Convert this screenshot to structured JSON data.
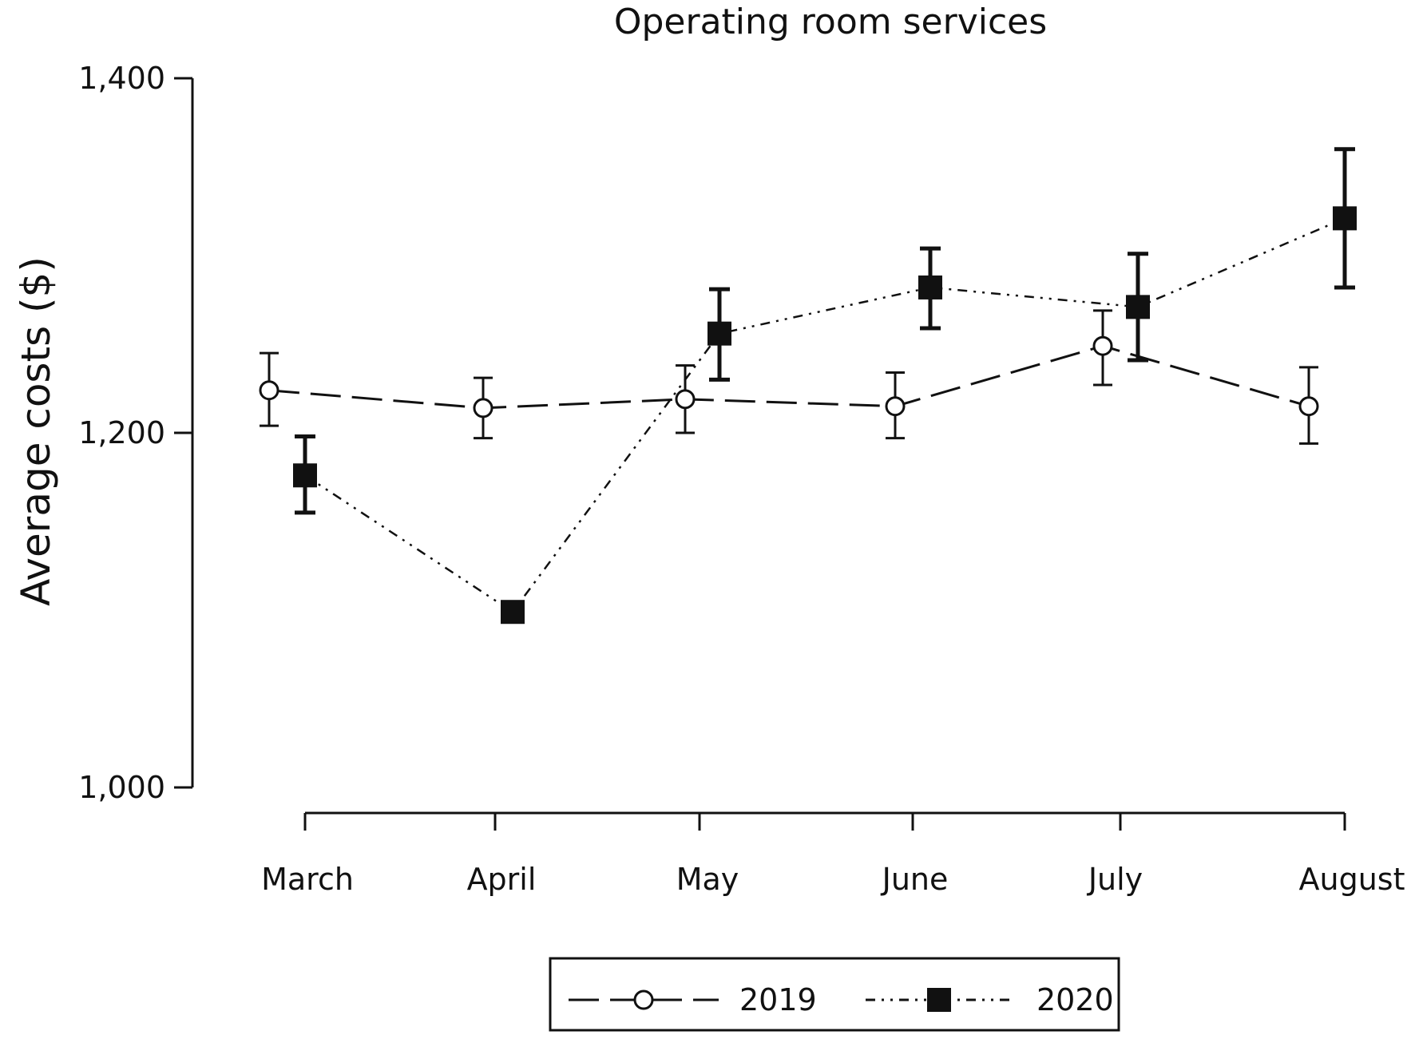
{
  "chart_data": {
    "type": "line",
    "title": "Operating room services",
    "xlabel": "",
    "ylabel": "Average costs  ($)",
    "categories": [
      "March",
      "April",
      "May",
      "June",
      "July",
      "August"
    ],
    "yticks": [
      "1,000",
      "1,200",
      "1,400"
    ],
    "ylim": [
      1000,
      1400
    ],
    "grid": false,
    "legend_position": "bottom",
    "series": [
      {
        "name": "2019",
        "marker": "open-circle",
        "line_style": "long-dash",
        "values": [
          1224,
          1214,
          1219,
          1215,
          1249,
          1215
        ],
        "error_low": [
          1204,
          1197,
          1200,
          1197,
          1227,
          1194
        ],
        "error_high": [
          1245,
          1231,
          1238,
          1234,
          1269,
          1237
        ]
      },
      {
        "name": "2020",
        "marker": "filled-square",
        "line_style": "dash-dot-dot",
        "values": [
          1176,
          1099,
          1256,
          1282,
          1271,
          1321
        ],
        "error_low": [
          1155,
          1099,
          1230,
          1259,
          1241,
          1282
        ],
        "error_high": [
          1198,
          1099,
          1281,
          1304,
          1301,
          1360
        ]
      }
    ],
    "colors": {
      "axis": "#111111",
      "series": "#111111"
    }
  }
}
